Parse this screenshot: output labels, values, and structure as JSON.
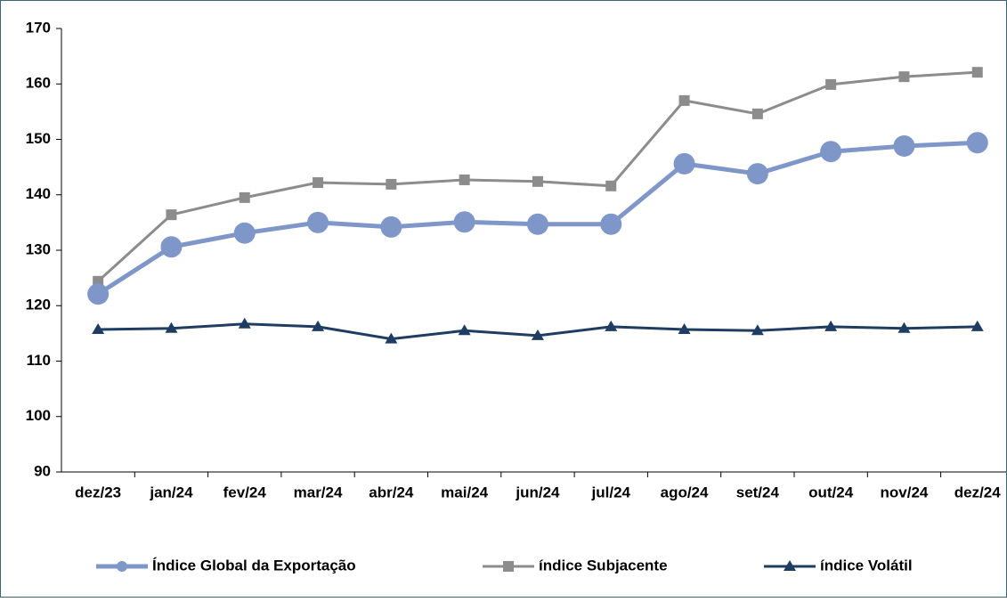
{
  "chart_data": {
    "type": "line",
    "categories": [
      "dez/23",
      "jan/24",
      "fev/24",
      "mar/24",
      "abr/24",
      "mai/24",
      "jun/24",
      "jul/24",
      "ago/24",
      "set/24",
      "out/24",
      "nov/24",
      "dez/24"
    ],
    "series": [
      {
        "name": "Índice Global da Exportação",
        "color": "#7f96c8",
        "marker": "circle",
        "values": [
          122.1,
          130.6,
          133.1,
          135.0,
          134.2,
          135.1,
          134.7,
          134.7,
          145.6,
          143.8,
          147.8,
          148.8,
          149.4
        ]
      },
      {
        "name": "índice Subjacente",
        "color": "#8c8c8c",
        "marker": "square",
        "values": [
          124.4,
          136.4,
          139.5,
          142.2,
          141.9,
          142.7,
          142.4,
          141.6,
          157.0,
          154.6,
          159.9,
          161.3,
          162.1
        ]
      },
      {
        "name": "índice Volátil",
        "color": "#1f3d63",
        "marker": "triangle",
        "values": [
          115.7,
          115.9,
          116.7,
          116.2,
          114.0,
          115.5,
          114.6,
          116.2,
          115.7,
          115.5,
          116.2,
          115.9,
          116.2
        ]
      }
    ],
    "ylim": [
      90,
      170
    ],
    "yticks": [
      90,
      100,
      110,
      120,
      130,
      140,
      150,
      160,
      170
    ],
    "legend": "bottom"
  }
}
